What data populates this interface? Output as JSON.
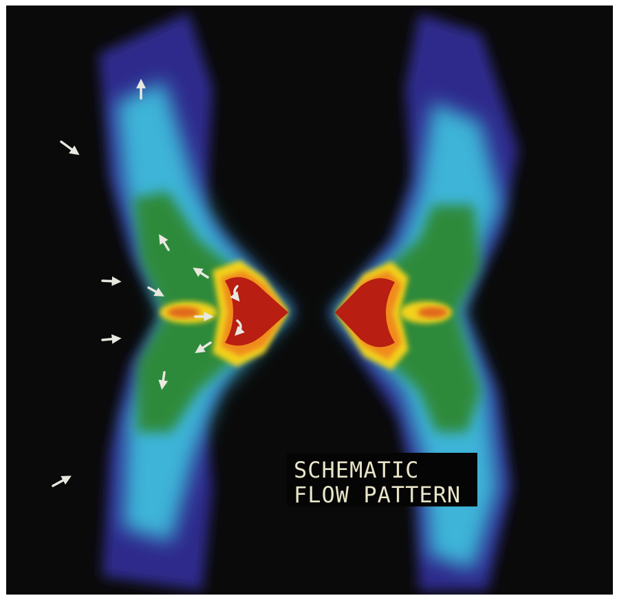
{
  "caption": {
    "line1": "SCHEMATIC",
    "line2": "FLOW PATTERN"
  },
  "colors": {
    "background": "#0a0a0a",
    "outer": "#2e2a8c",
    "cyan": "#3cb4d8",
    "green": "#2e8a3a",
    "yellow": "#f2d21e",
    "orange": "#f08a1a",
    "red": "#b81e12",
    "arrow": "#e8e8e0",
    "caption_text": "#e8e4c8"
  },
  "icons": {
    "flow_arrow": "arrow-icon"
  }
}
